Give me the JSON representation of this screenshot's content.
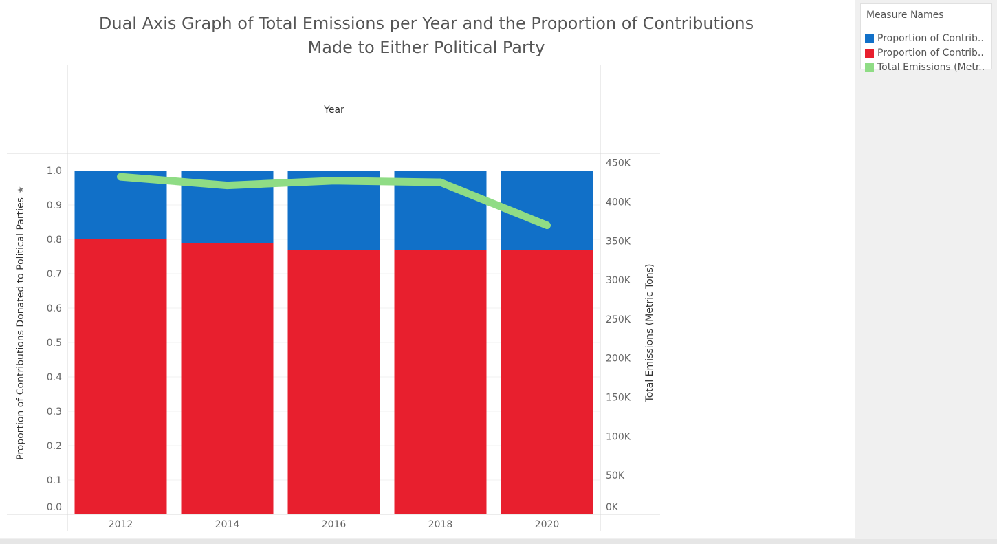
{
  "title_line1": "Dual Axis Graph of Total Emissions per Year and the Proportion of Contributions",
  "title_line2": "Made to Either Political Party",
  "legend": {
    "title": "Measure Names",
    "items": [
      {
        "label": "Proportion of Contrib..",
        "color": "#1170c8"
      },
      {
        "label": "Proportion of Contrib..",
        "color": "#e81f2e"
      },
      {
        "label": "Total Emissions (Metr..",
        "color": "#8fdc85"
      }
    ]
  },
  "chart_data": {
    "type": "bar",
    "column_header": "Year",
    "categories": [
      "2012",
      "2014",
      "2016",
      "2018",
      "2020"
    ],
    "series": [
      {
        "values": [
          0.8,
          0.79,
          0.77,
          0.77,
          0.77
        ],
        "color": "#e81f2e",
        "axis": "left",
        "stack": true
      },
      {
        "values": [
          0.2,
          0.21,
          0.23,
          0.23,
          0.23
        ],
        "color": "#1170c8",
        "axis": "left",
        "stack": true
      },
      {
        "type": "line",
        "values": [
          432000,
          421000,
          427000,
          425000,
          370000
        ],
        "color": "#8fdc85",
        "axis": "right"
      }
    ],
    "ylabel": "Proportion of Contributions Donated to Political Parties",
    "ylim": [
      0,
      1.0
    ],
    "yticks": [
      "1.0",
      "0.9",
      "0.8",
      "0.7",
      "0.6",
      "0.5",
      "0.4",
      "0.3",
      "0.2",
      "0.1",
      "0.0"
    ],
    "y2label": "Total Emissions (Metric Tons)",
    "y2lim": [
      0,
      440000
    ],
    "y2ticks": [
      "450K",
      "400K",
      "350K",
      "300K",
      "250K",
      "200K",
      "150K",
      "100K",
      "50K",
      "0K"
    ],
    "grid": true,
    "legend_position": "right"
  }
}
